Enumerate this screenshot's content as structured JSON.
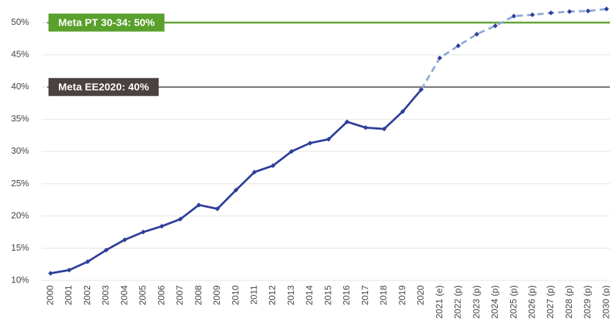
{
  "chart_data": {
    "type": "line",
    "categories": [
      "2000",
      "2001",
      "2002",
      "2003",
      "2004",
      "2005",
      "2006",
      "2007",
      "2008",
      "2009",
      "2010",
      "2011",
      "2012",
      "2013",
      "2014",
      "2015",
      "2016",
      "2017",
      "2018",
      "2019",
      "2020",
      "2021 (e)",
      "2022 (p)",
      "2023 (p)",
      "2024 (p)",
      "2025 (p)",
      "2026 (p)",
      "2027 (p)",
      "2028 (p)",
      "2029 (p)",
      "2030 (p)"
    ],
    "values": [
      11.1,
      11.6,
      12.9,
      14.7,
      16.3,
      17.5,
      18.4,
      19.5,
      21.7,
      21.1,
      24.0,
      26.8,
      27.8,
      30.0,
      31.3,
      31.9,
      34.6,
      33.7,
      33.5,
      36.2,
      39.6,
      44.5,
      46.4,
      48.2,
      49.5,
      51.0,
      51.2,
      51.5,
      51.7,
      51.8,
      52.1
    ],
    "color": "#2e3f9a",
    "projection_color": "#8fa8d8",
    "ylim": [
      10,
      53.5
    ],
    "yticks": [
      {
        "value": 10,
        "label": "10%"
      },
      {
        "value": 15,
        "label": "15%"
      },
      {
        "value": 20,
        "label": "20%"
      },
      {
        "value": 25,
        "label": "25%"
      },
      {
        "value": 30,
        "label": "30%"
      },
      {
        "value": 35,
        "label": "35%"
      },
      {
        "value": 40,
        "label": "40%"
      },
      {
        "value": 45,
        "label": "45%"
      },
      {
        "value": 50,
        "label": "50%"
      }
    ],
    "grid": true,
    "annotations": [
      {
        "label": "Meta PT 30-34: 50%",
        "value": 50,
        "color": "#5aa02c",
        "box_color": "#5aa02c"
      },
      {
        "label": "Meta EE2020: 40%",
        "value": 40,
        "color": "#7f7f7f",
        "box_color": "#4a4141"
      }
    ]
  }
}
